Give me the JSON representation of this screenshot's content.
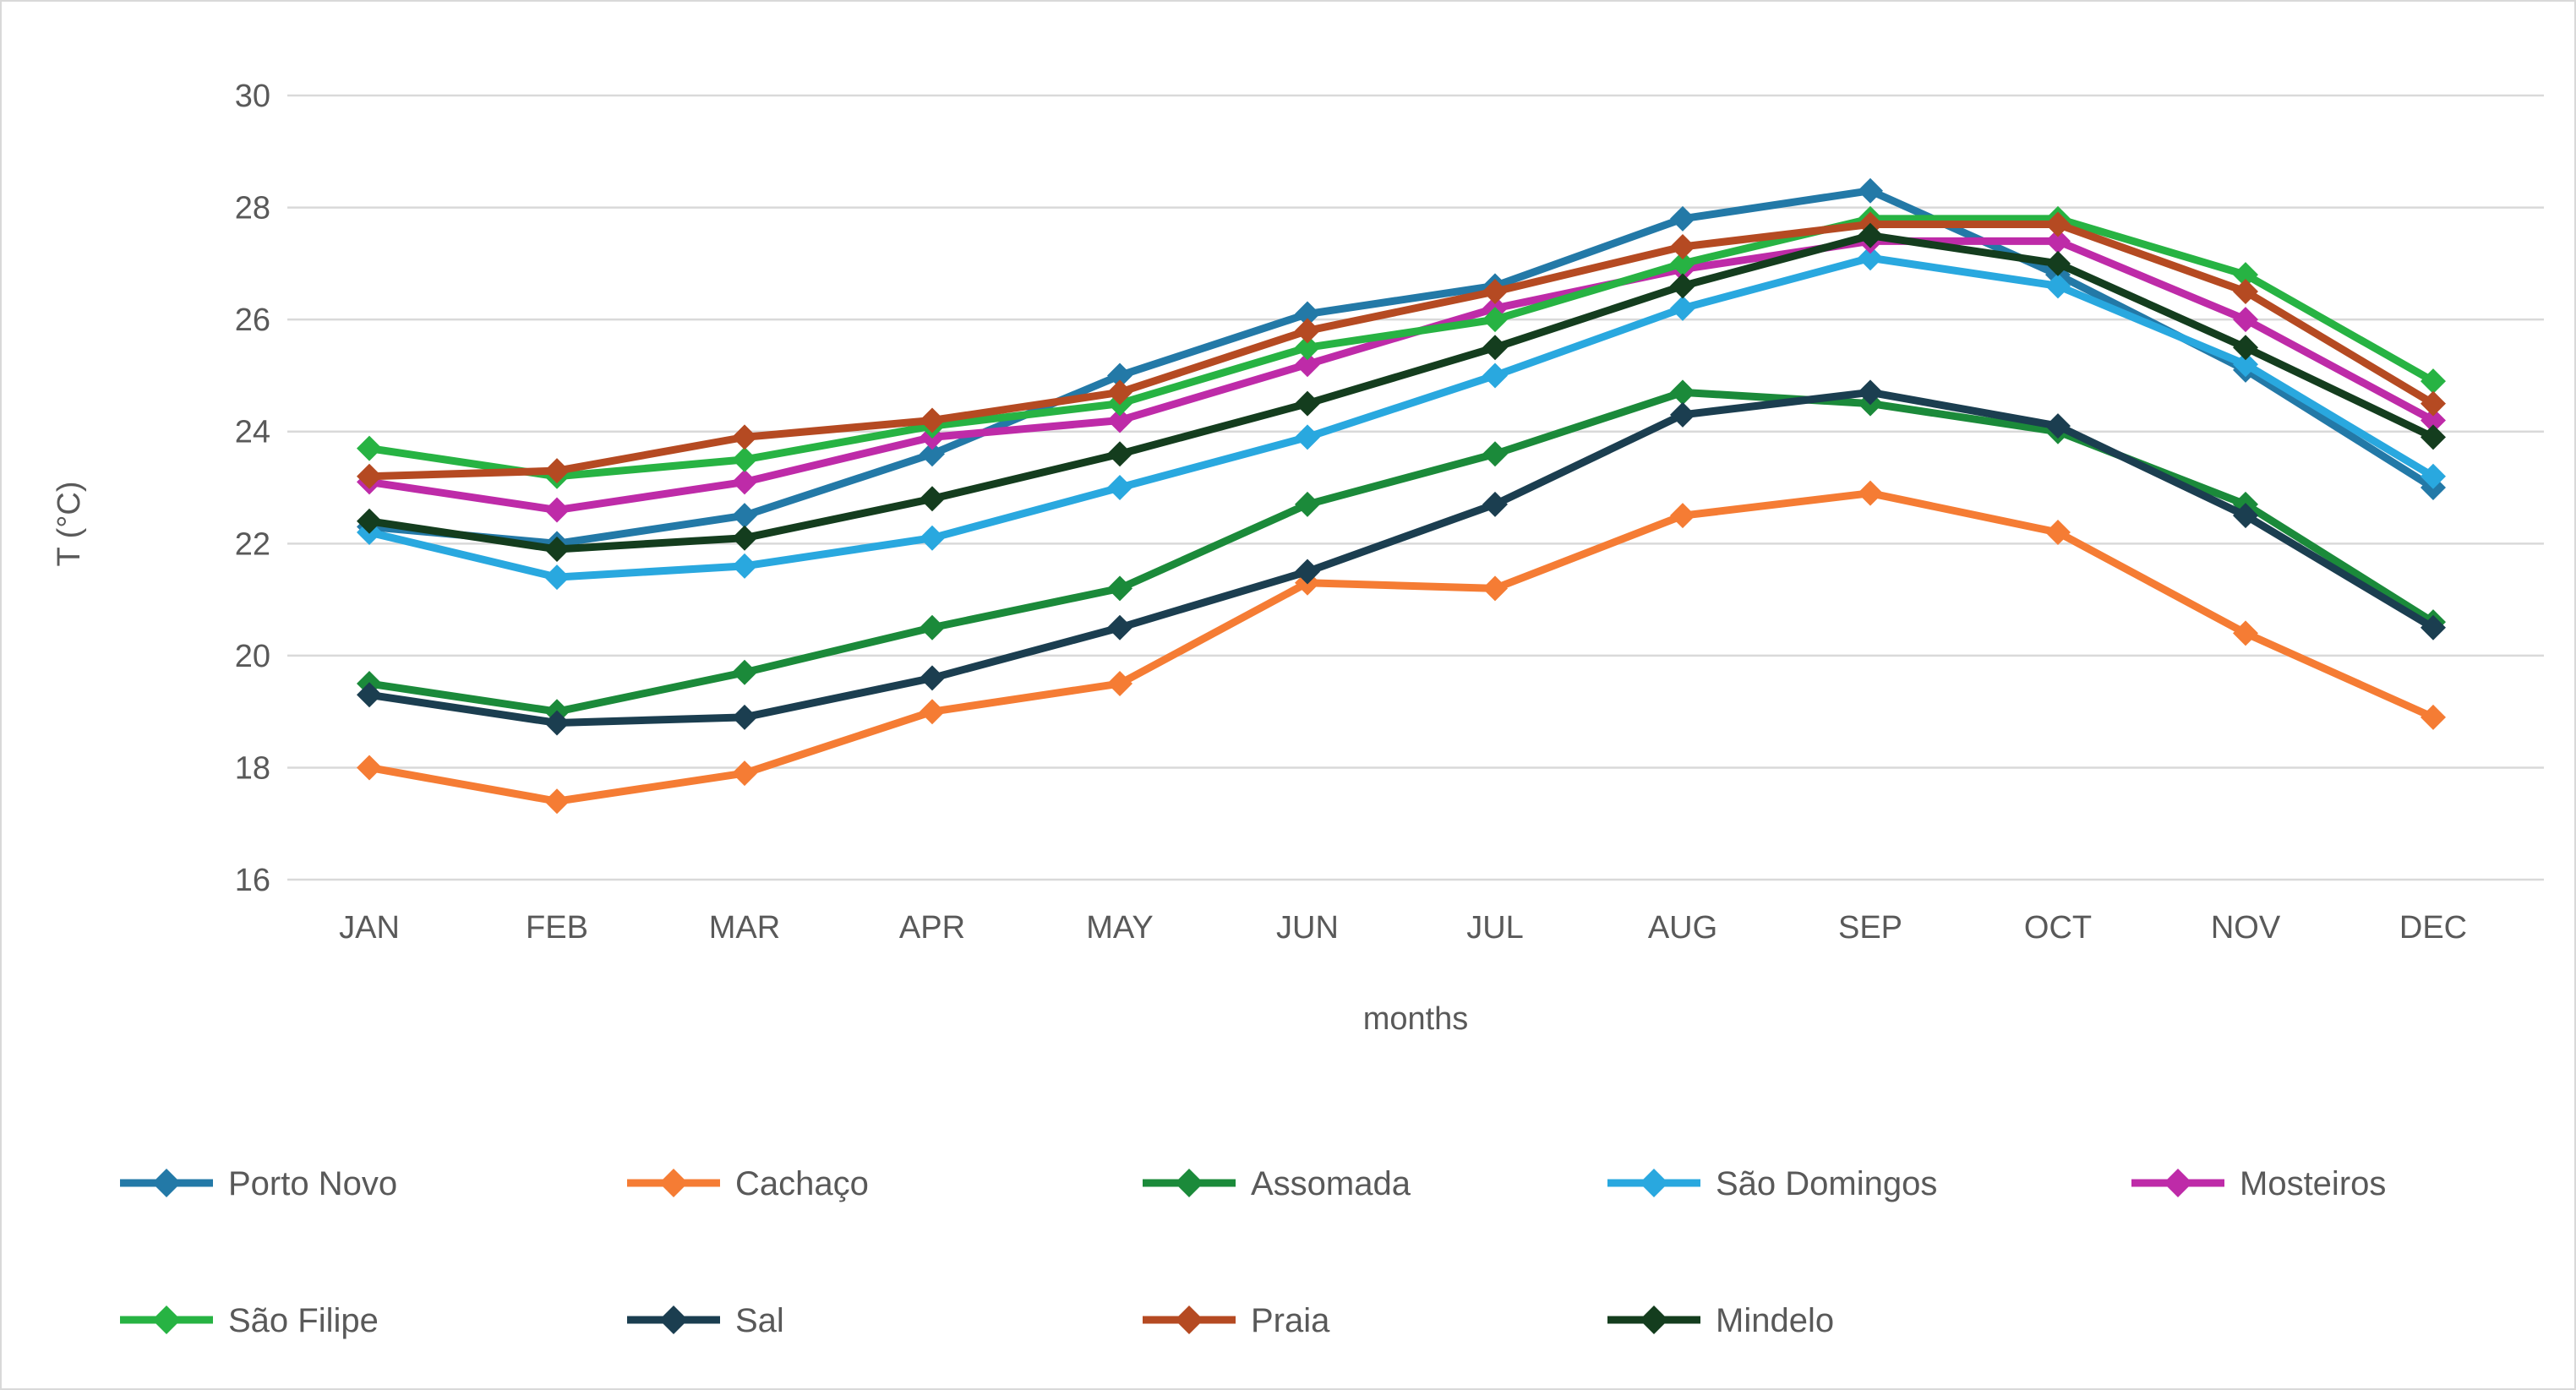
{
  "chart_data": {
    "type": "line",
    "title": "",
    "xlabel": "months",
    "ylabel": "T (°C)",
    "ylim": [
      16,
      30
    ],
    "yticks": [
      30,
      28,
      26,
      24,
      22,
      20,
      18,
      16
    ],
    "grid": true,
    "legend_position": "bottom",
    "marker": "diamond",
    "categories": [
      "JAN",
      "FEB",
      "MAR",
      "APR",
      "MAY",
      "JUN",
      "JUL",
      "AUG",
      "SEP",
      "OCT",
      "NOV",
      "DEC"
    ],
    "series": [
      {
        "name": "Porto Novo",
        "color": "#2379A7",
        "values": [
          22.3,
          22.0,
          22.5,
          23.6,
          25.0,
          26.1,
          26.6,
          27.8,
          28.3,
          26.8,
          25.1,
          23.0
        ]
      },
      {
        "name": "Cachaço",
        "color": "#F57C34",
        "values": [
          18.0,
          17.4,
          17.9,
          19.0,
          19.5,
          21.3,
          21.2,
          22.5,
          22.9,
          22.2,
          20.4,
          18.9
        ]
      },
      {
        "name": "Assomada",
        "color": "#1B8A3A",
        "values": [
          19.5,
          19.0,
          19.7,
          20.5,
          21.2,
          22.7,
          23.6,
          24.7,
          24.5,
          24.0,
          22.7,
          20.6
        ]
      },
      {
        "name": "São Domingos",
        "color": "#29A8DF",
        "values": [
          22.2,
          21.4,
          21.6,
          22.1,
          23.0,
          23.9,
          25.0,
          26.2,
          27.1,
          26.6,
          25.2,
          23.2
        ]
      },
      {
        "name": "Mosteiros",
        "color": "#BE2BA8",
        "values": [
          23.1,
          22.6,
          23.1,
          23.9,
          24.2,
          25.2,
          26.2,
          26.9,
          27.4,
          27.4,
          26.0,
          24.2
        ]
      },
      {
        "name": "São Filipe",
        "color": "#27B343",
        "values": [
          23.7,
          23.2,
          23.5,
          24.1,
          24.5,
          25.5,
          26.0,
          27.0,
          27.8,
          27.8,
          26.8,
          24.9
        ]
      },
      {
        "name": "Sal",
        "color": "#1B3E50",
        "values": [
          19.3,
          18.8,
          18.9,
          19.6,
          20.5,
          21.5,
          22.7,
          24.3,
          24.7,
          24.1,
          22.5,
          20.5
        ]
      },
      {
        "name": "Praia",
        "color": "#B54A22",
        "values": [
          23.2,
          23.3,
          23.9,
          24.2,
          24.7,
          25.8,
          26.5,
          27.3,
          27.7,
          27.7,
          26.5,
          24.5
        ]
      },
      {
        "name": "Mindelo",
        "color": "#143D1E",
        "values": [
          22.4,
          21.9,
          22.1,
          22.8,
          23.6,
          24.5,
          25.5,
          26.6,
          27.5,
          27.0,
          25.5,
          23.9
        ]
      }
    ],
    "legend_rows": [
      [
        "Porto Novo",
        "Cachaço",
        "Assomada",
        "São Domingos",
        "Mosteiros"
      ],
      [
        "São Filipe",
        "Sal",
        "Praia",
        "Mindelo"
      ]
    ],
    "style": {
      "grid_color": "#d9d9d9",
      "label_color": "#595959",
      "background": "#ffffff"
    }
  }
}
